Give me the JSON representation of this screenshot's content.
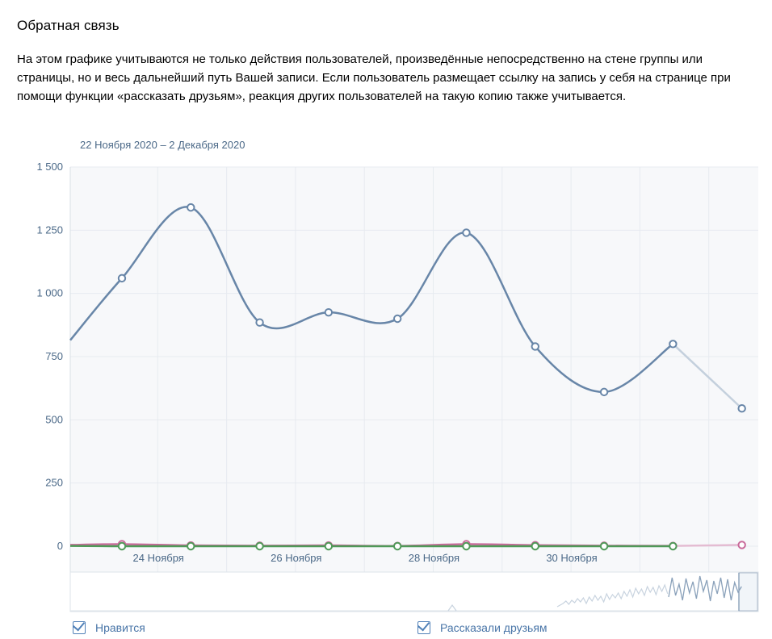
{
  "header": {
    "title": "Обратная связь",
    "description": "На этом графике учитываются не только действия пользователей, произведённые непосредственно на стене группы или страницы, но и весь дальнейший путь Вашей записи. Если пользователь размещает ссылку на запись у себя на странице при помощи функции «рассказать друзьям», реакция других пользователей на такую копию также учитывается.",
    "date_range": "22 Ноября 2020 – 2 Декабря 2020"
  },
  "legend": {
    "likes_label": "Нравится",
    "shares_label": "Рассказали друзьям"
  },
  "colors": {
    "main_line": "#6886a8",
    "main_line_faded": "#c4d0dd",
    "pink_line": "#c96a9a",
    "green_line": "#4f9a58",
    "grid": "#e7ebf0",
    "plot_bg": "#f7f8fa"
  },
  "chart_data": {
    "type": "line",
    "ylim": [
      0,
      1500
    ],
    "y_ticks": [
      "0",
      "250",
      "500",
      "750",
      "1 000",
      "1 250",
      "1 500"
    ],
    "y_tick_values": [
      0,
      250,
      500,
      750,
      1000,
      1250,
      1500
    ],
    "x_ticks": [
      "24 Ноября",
      "26 Ноября",
      "28 Ноября",
      "30 Ноября"
    ],
    "x_tick_days": [
      2,
      4,
      6,
      8
    ],
    "series": [
      {
        "x": [
          0,
          0.75,
          1.75,
          2.75,
          3.75,
          4.75,
          5.75,
          6.75,
          7.75,
          8.75,
          9.75,
          10.75
        ],
        "values": [
          815,
          1060,
          1340,
          885,
          925,
          900,
          1240,
          790,
          610,
          800,
          545,
          null
        ],
        "faded_from_index": 9,
        "color": "#6886a8"
      },
      {
        "x": [
          0,
          0.75,
          1.75,
          2.75,
          3.75,
          4.75,
          5.75,
          6.75,
          7.75,
          8.75,
          9.75
        ],
        "values": [
          5,
          8,
          3,
          2,
          3,
          1,
          8,
          4,
          2,
          1,
          5
        ],
        "faded_from_index": 9,
        "color": "#c96a9a"
      },
      {
        "x": [
          0,
          0.75,
          1.75,
          2.75,
          3.75,
          4.75,
          5.75,
          6.75,
          7.75,
          8.75
        ],
        "values": [
          1,
          0,
          0,
          0,
          0,
          0,
          0,
          0,
          0,
          0
        ],
        "faded_from_index": 9,
        "color": "#4f9a58"
      }
    ]
  }
}
